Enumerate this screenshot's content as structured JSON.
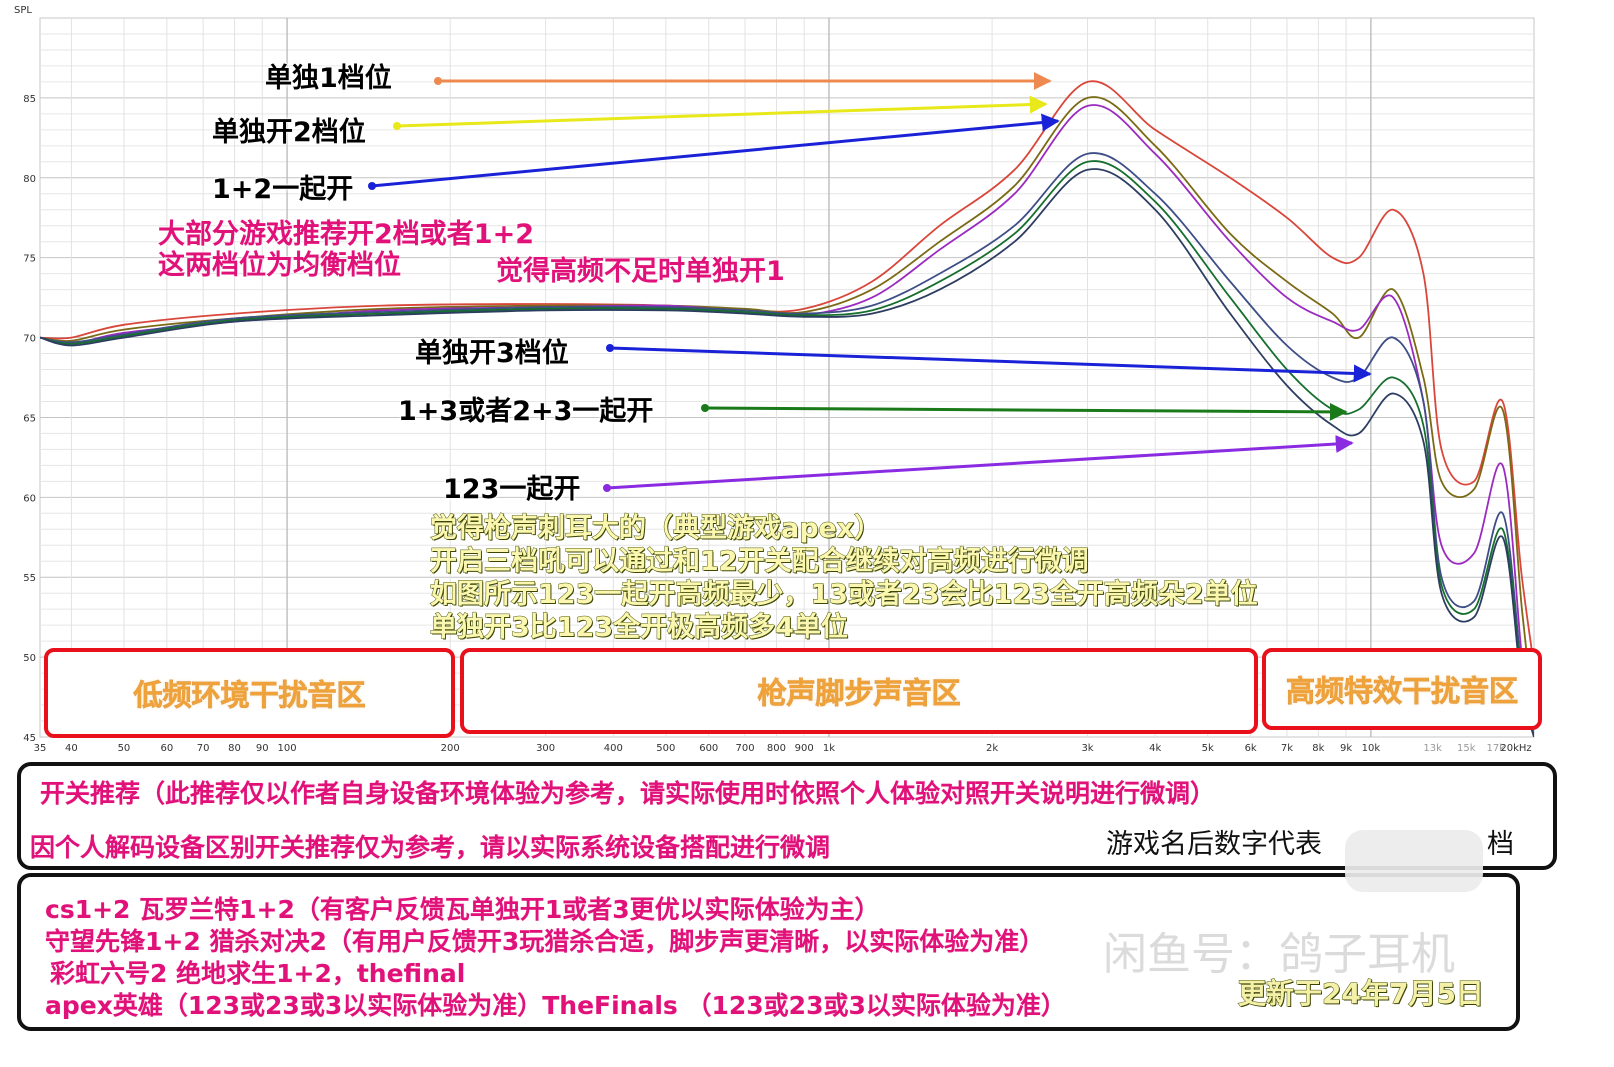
{
  "chart_data": {
    "type": "line",
    "ylabel": "SPL",
    "xscale": "log",
    "xlim": [
      35,
      20000
    ],
    "ylim": [
      45,
      90
    ],
    "grid": true,
    "yticks": [
      "85",
      "80",
      "75",
      "70",
      "65",
      "60",
      "55",
      "50",
      "45"
    ],
    "ytick_values": [
      85,
      80,
      75,
      70,
      65,
      60,
      55,
      50,
      45
    ],
    "xticks": [
      "35",
      "40",
      "50",
      "60",
      "70",
      "80",
      "90",
      "100",
      "200",
      "300",
      "400",
      "500",
      "600",
      "700",
      "800",
      "900",
      "1k",
      "2k",
      "3k",
      "4k",
      "5k",
      "6k",
      "7k",
      "8k",
      "9k",
      "10k",
      "13k",
      "15k",
      "17k",
      "20kHz"
    ],
    "xtick_values": [
      35,
      40,
      50,
      60,
      70,
      80,
      90,
      100,
      200,
      300,
      400,
      500,
      600,
      700,
      800,
      900,
      1000,
      2000,
      3000,
      4000,
      5000,
      6000,
      7000,
      8000,
      9000,
      10000,
      13000,
      15000,
      17000,
      20000
    ],
    "series": [
      {
        "color": "#d9463a",
        "values": [
          [
            35,
            70
          ],
          [
            40,
            70
          ],
          [
            50,
            70.8
          ],
          [
            80,
            71.5
          ],
          [
            150,
            72
          ],
          [
            300,
            72.1
          ],
          [
            500,
            72
          ],
          [
            700,
            71.7
          ],
          [
            900,
            71.8
          ],
          [
            1200,
            73.5
          ],
          [
            1600,
            77
          ],
          [
            2200,
            80.5
          ],
          [
            3000,
            86
          ],
          [
            4000,
            83
          ],
          [
            5500,
            80
          ],
          [
            7000,
            77.5
          ],
          [
            8500,
            75
          ],
          [
            9500,
            75
          ],
          [
            11000,
            78
          ],
          [
            12500,
            74
          ],
          [
            13500,
            63
          ],
          [
            15500,
            61
          ],
          [
            17500,
            66
          ],
          [
            19000,
            55
          ],
          [
            20500,
            47
          ]
        ]
      },
      {
        "color": "#7a6a15",
        "values": [
          [
            35,
            70
          ],
          [
            40,
            69.8
          ],
          [
            50,
            70.5
          ],
          [
            80,
            71.2
          ],
          [
            150,
            71.8
          ],
          [
            300,
            72
          ],
          [
            500,
            72
          ],
          [
            700,
            71.8
          ],
          [
            900,
            71.6
          ],
          [
            1200,
            73
          ],
          [
            1600,
            76
          ],
          [
            2200,
            79.5
          ],
          [
            3000,
            85
          ],
          [
            4000,
            82
          ],
          [
            5500,
            76.5
          ],
          [
            7000,
            73.5
          ],
          [
            8500,
            71.5
          ],
          [
            9500,
            70
          ],
          [
            11000,
            73
          ],
          [
            12500,
            67.5
          ],
          [
            13500,
            61
          ],
          [
            15500,
            60.5
          ],
          [
            17500,
            65.5
          ],
          [
            19000,
            53
          ],
          [
            20000,
            46
          ]
        ]
      },
      {
        "color": "#9b2bc0",
        "values": [
          [
            35,
            70
          ],
          [
            40,
            69.6
          ],
          [
            50,
            70.3
          ],
          [
            80,
            71
          ],
          [
            150,
            71.7
          ],
          [
            300,
            71.9
          ],
          [
            500,
            72
          ],
          [
            700,
            71.6
          ],
          [
            900,
            71.4
          ],
          [
            1200,
            72.5
          ],
          [
            1600,
            75.5
          ],
          [
            2200,
            79
          ],
          [
            3000,
            84.5
          ],
          [
            4000,
            81.5
          ],
          [
            5500,
            76
          ],
          [
            7000,
            72.5
          ],
          [
            8500,
            71
          ],
          [
            9500,
            70.5
          ],
          [
            11000,
            72.5
          ],
          [
            12500,
            66
          ],
          [
            13500,
            57
          ],
          [
            15500,
            56.5
          ],
          [
            17500,
            62
          ],
          [
            19000,
            50
          ],
          [
            20000,
            45
          ]
        ]
      },
      {
        "color": "#3e4e86",
        "values": [
          [
            35,
            70
          ],
          [
            40,
            69.7
          ],
          [
            50,
            70.2
          ],
          [
            80,
            71.2
          ],
          [
            150,
            71.6
          ],
          [
            300,
            71.9
          ],
          [
            500,
            71.9
          ],
          [
            700,
            71.7
          ],
          [
            900,
            71.5
          ],
          [
            1200,
            72
          ],
          [
            1600,
            74
          ],
          [
            2200,
            77
          ],
          [
            3000,
            81.5
          ],
          [
            4000,
            79
          ],
          [
            5500,
            73.5
          ],
          [
            7000,
            69.5
          ],
          [
            8500,
            67.5
          ],
          [
            9500,
            67.5
          ],
          [
            11000,
            70
          ],
          [
            12500,
            66
          ],
          [
            13500,
            55
          ],
          [
            15500,
            53.5
          ],
          [
            17500,
            59
          ],
          [
            19000,
            49
          ],
          [
            20000,
            45
          ]
        ]
      },
      {
        "color": "#166f2d",
        "values": [
          [
            35,
            70
          ],
          [
            40,
            69.6
          ],
          [
            50,
            70.1
          ],
          [
            80,
            71.1
          ],
          [
            150,
            71.5
          ],
          [
            300,
            71.8
          ],
          [
            500,
            71.8
          ],
          [
            700,
            71.6
          ],
          [
            900,
            71.4
          ],
          [
            1200,
            71.7
          ],
          [
            1600,
            73.5
          ],
          [
            2200,
            76.5
          ],
          [
            3000,
            81
          ],
          [
            4000,
            78.5
          ],
          [
            5500,
            72.5
          ],
          [
            7000,
            68
          ],
          [
            8500,
            65.5
          ],
          [
            9500,
            65.5
          ],
          [
            11000,
            67.5
          ],
          [
            12500,
            64.5
          ],
          [
            13500,
            54.5
          ],
          [
            15500,
            53
          ],
          [
            17500,
            58
          ],
          [
            19000,
            48.5
          ],
          [
            20000,
            45
          ]
        ]
      },
      {
        "color": "#2d3d62",
        "values": [
          [
            35,
            70
          ],
          [
            40,
            69.5
          ],
          [
            50,
            70
          ],
          [
            80,
            71
          ],
          [
            150,
            71.4
          ],
          [
            300,
            71.7
          ],
          [
            500,
            71.7
          ],
          [
            700,
            71.5
          ],
          [
            900,
            71.3
          ],
          [
            1200,
            71.5
          ],
          [
            1600,
            73
          ],
          [
            2200,
            76
          ],
          [
            3000,
            80.5
          ],
          [
            4000,
            78
          ],
          [
            5500,
            71.5
          ],
          [
            7000,
            67
          ],
          [
            8500,
            64.5
          ],
          [
            9500,
            64
          ],
          [
            11000,
            66.5
          ],
          [
            12500,
            63.5
          ],
          [
            13500,
            54
          ],
          [
            15500,
            52.5
          ],
          [
            17500,
            57.5
          ],
          [
            19000,
            48
          ],
          [
            20000,
            45
          ]
        ]
      }
    ]
  },
  "arrows": [
    {
      "label": "单独1档位",
      "color": "#ee8a50"
    },
    {
      "label": "单独开2档位",
      "color": "#e8e81a"
    },
    {
      "label": "1+2一起开",
      "color": "#1a22d8"
    },
    {
      "label": "单独开3档位",
      "color": "#1a22d8"
    },
    {
      "label": "1+3或者2+3一起开",
      "color": "#1a7a1a"
    },
    {
      "label": "123一起开",
      "color": "#8a2be2"
    }
  ],
  "notes": {
    "balanced_line1": "大部分游戏推荐开2档或者1+2",
    "balanced_line2": "这两档位为均衡档位",
    "treble_lack": "觉得高频不足时单独开1",
    "olive_lines": [
      "觉得枪声刺耳大的（典型游戏apex）",
      "开启三档吼可以通过和12开关配合继续对高频进行微调",
      "如图所示123一起开高频最少，13或者23会比123全开高频朵2单位",
      "单独开3比123全开极高频多4单位"
    ]
  },
  "zones": [
    "低频环境干扰音区",
    "枪声脚步声音区",
    "高频特效干扰音区"
  ],
  "recommend": {
    "line1": "开关推荐（此推荐仅以作者自身设备环境体验为参考，请实际使用时依照个人体验对照开关说明进行微调）",
    "line2": "因个人解码设备区别开关推荐仅为参考，请以实际系统设备搭配进行微调",
    "note": "游戏名后数字代表",
    "note_tail": "档"
  },
  "games": [
    "cs1+2 瓦罗兰特1+2（有客户反馈瓦单独开1或者3更优以实际体验为主）",
    "守望先锋1+2 猎杀对决2（有用户反馈开3玩猎杀合适，脚步声更清晰，以实际体验为准）",
    "彩虹六号2 绝地求生1+2，thefinal",
    "apex英雄（123或23或3以实际体验为准）TheFinals （123或23或3以实际体验为准）"
  ],
  "update_date": "更新于24年7月5日",
  "watermark": "闲鱼号：鸽子耳机"
}
